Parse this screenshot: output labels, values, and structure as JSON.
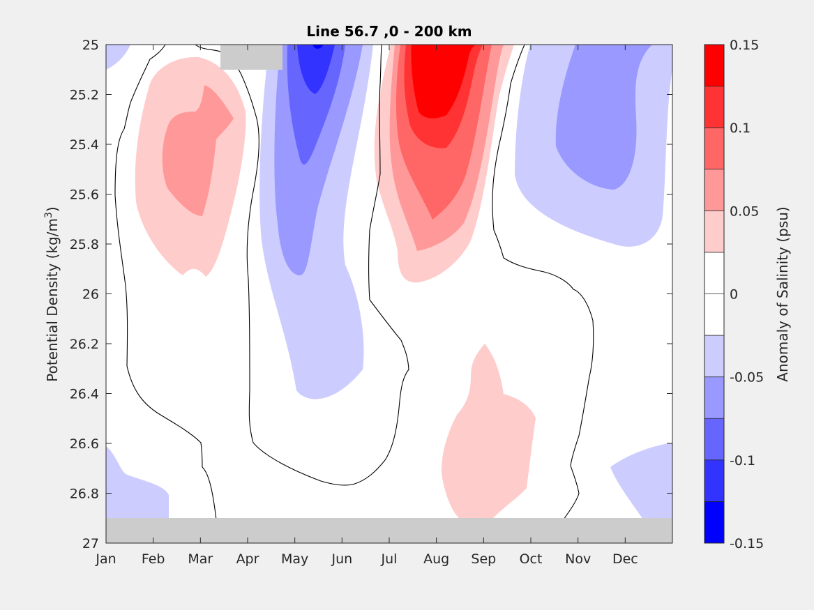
{
  "chart_data": {
    "type": "heatmap",
    "plot_kind": "filled contour",
    "title": "Line 56.7 ,0 - 200 km",
    "ylabel_text": "Potential Density (kg/m",
    "ylabel_sup": "3",
    "ylabel_close": ")",
    "colorbar_label": "Anomaly of Salinity (psu)",
    "x_tick_labels": [
      "Jan",
      "Feb",
      "Mar",
      "Apr",
      "May",
      "Jun",
      "Jul",
      "Aug",
      "Sep",
      "Oct",
      "Nov",
      "Dec"
    ],
    "x_tick_values": [
      0,
      1,
      2,
      3,
      4,
      5,
      6,
      7,
      8,
      9,
      10,
      11
    ],
    "xlim": [
      0,
      12
    ],
    "y_tick_labels": [
      "25",
      "25.2",
      "25.4",
      "25.6",
      "25.8",
      "26",
      "26.2",
      "26.4",
      "26.6",
      "26.8",
      "27"
    ],
    "y_tick_values": [
      25,
      25.2,
      25.4,
      25.6,
      25.8,
      26,
      26.2,
      26.4,
      26.6,
      26.8,
      27
    ],
    "ylim": [
      25,
      27
    ],
    "y_reversed": true,
    "colorbar_tick_labels": [
      "0.15",
      "0.1",
      "0.05",
      "0",
      "-0.05",
      "-0.1",
      "-0.15"
    ],
    "colorbar_tick_values": [
      0.15,
      0.1,
      0.05,
      0,
      -0.05,
      -0.1,
      -0.15
    ],
    "clim": [
      -0.15,
      0.15
    ],
    "levels": [
      -0.15,
      -0.125,
      -0.1,
      -0.075,
      -0.05,
      -0.025,
      0,
      0.025,
      0.05,
      0.075,
      0.1,
      0.125,
      0.15
    ],
    "level_colors": [
      "#0000ff",
      "#3333ff",
      "#6666ff",
      "#9999ff",
      "#ccccff",
      "#ffffff",
      "#ffffff",
      "#ffcccc",
      "#ff9999",
      "#ff6666",
      "#ff3333",
      "#ff0000"
    ],
    "no_data_color": "#cccccc",
    "zero_contour": true,
    "features": [
      {
        "sign": "positive",
        "peak": 0.1,
        "month_center": 1.7,
        "density_center": 25.45,
        "month_range": [
          0.6,
          3.0
        ],
        "density_range": [
          25.05,
          25.95
        ]
      },
      {
        "sign": "negative",
        "peak": -0.15,
        "month_center": 4.4,
        "density_center": 25.1,
        "month_range": [
          3.2,
          5.5
        ],
        "density_range": [
          25.0,
          26.45
        ]
      },
      {
        "sign": "positive",
        "peak": 0.15,
        "month_center": 7.0,
        "density_center": 25.2,
        "month_range": [
          5.6,
          8.5
        ],
        "density_range": [
          25.0,
          25.95
        ]
      },
      {
        "sign": "negative",
        "peak": -0.1,
        "month_center": 10.5,
        "density_center": 25.4,
        "month_range": [
          8.6,
          12.0
        ],
        "density_range": [
          25.0,
          25.85
        ]
      },
      {
        "sign": "positive",
        "peak": 0.05,
        "month_center": 8.0,
        "density_center": 26.6,
        "month_range": [
          7.1,
          9.1
        ],
        "density_range": [
          26.2,
          26.9
        ]
      },
      {
        "sign": "negative",
        "peak": -0.05,
        "month_center": 0.3,
        "density_center": 26.8,
        "month_range": [
          0.0,
          1.3
        ],
        "density_range": [
          26.6,
          26.9
        ]
      },
      {
        "sign": "negative",
        "peak": -0.05,
        "month_center": 11.5,
        "density_center": 26.75,
        "month_range": [
          10.8,
          12.0
        ],
        "density_range": [
          26.6,
          26.9
        ]
      }
    ],
    "no_data_regions": [
      {
        "month_range": [
          0.0,
          12.0
        ],
        "density_range": [
          26.9,
          27.0
        ]
      },
      {
        "month_range": [
          2.5,
          3.8
        ],
        "density_range": [
          25.0,
          25.1
        ]
      }
    ]
  }
}
